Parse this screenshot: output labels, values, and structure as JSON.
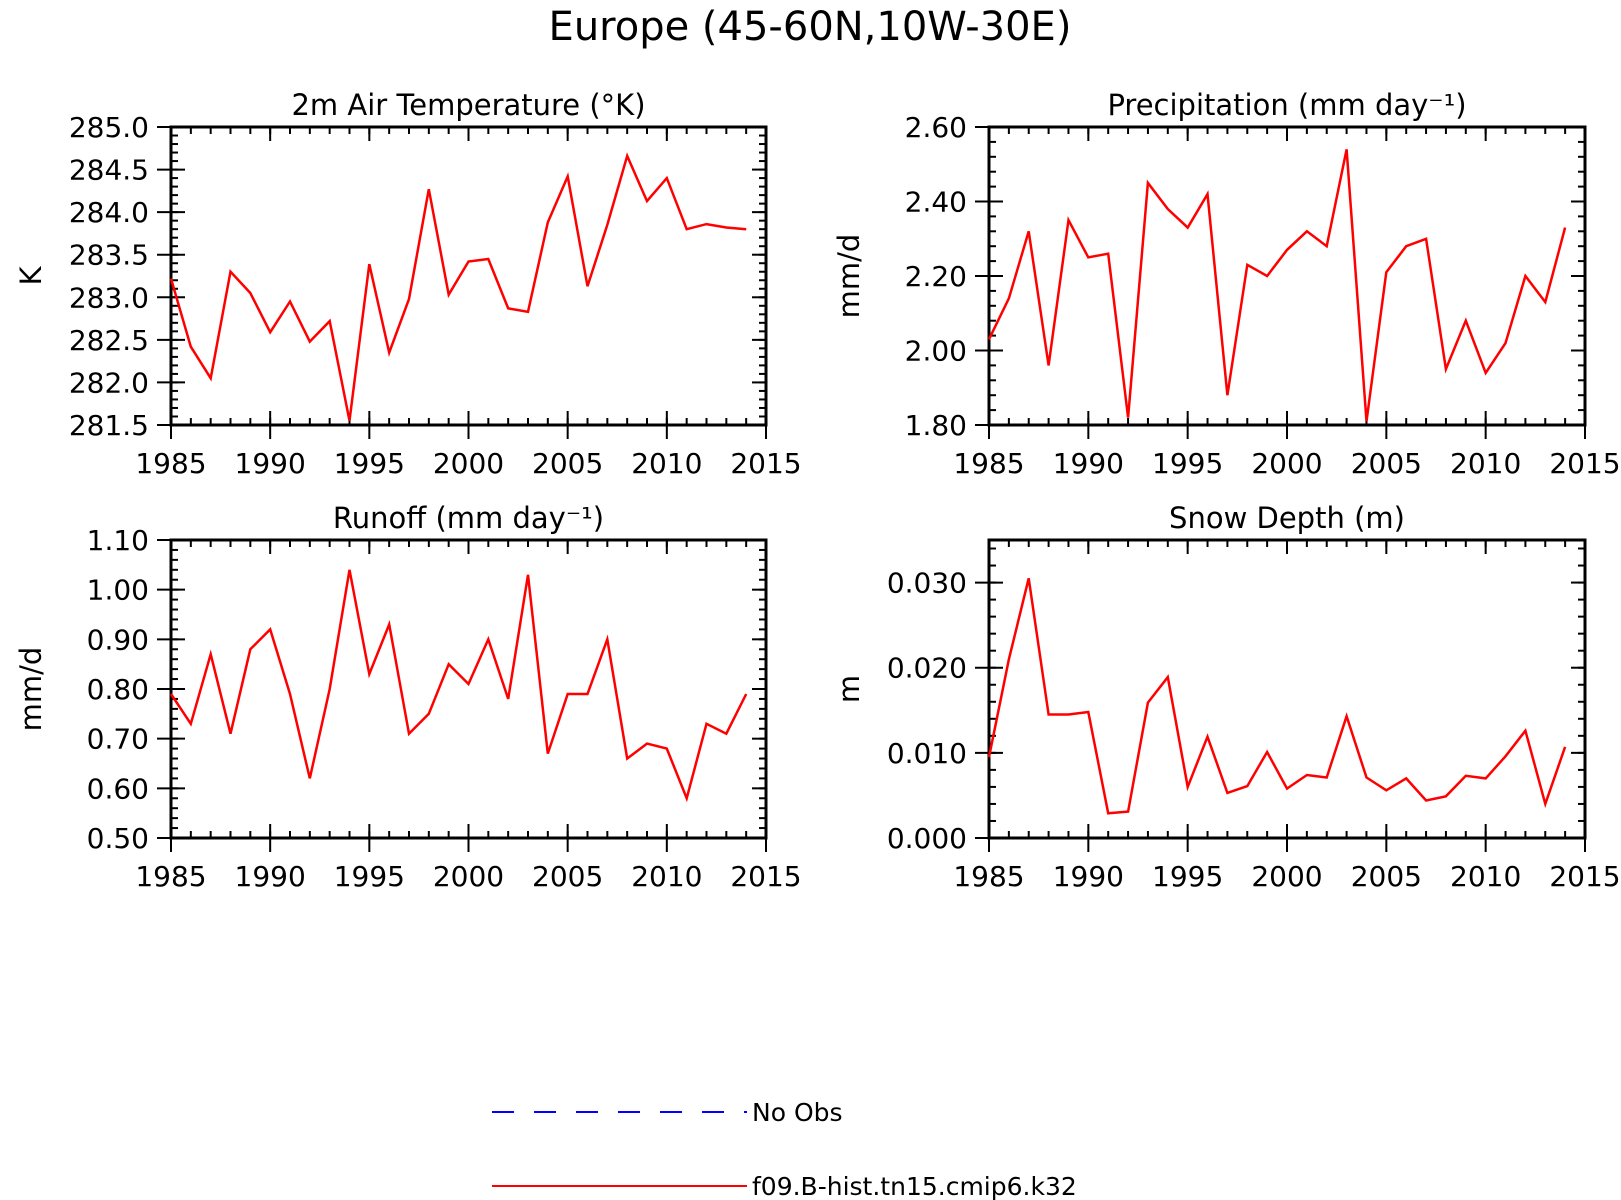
{
  "title": "Europe (45-60N,10W-30E)",
  "legend": [
    {
      "label": "No Obs",
      "color": "#0000ff",
      "style": "dashed"
    },
    {
      "label": "f09.B-hist.tn15.cmip6.k32",
      "color": "#ff0000",
      "style": "solid"
    }
  ],
  "chart_data": [
    {
      "type": "line",
      "title": "2m Air Temperature (°K)",
      "ylabel": "K",
      "xlim": [
        1985,
        2015
      ],
      "ylim": [
        281.5,
        285.0
      ],
      "xticks": [
        1985,
        1990,
        1995,
        2000,
        2005,
        2010,
        2015
      ],
      "yticks": [
        "281.5",
        "282.0",
        "282.5",
        "283.0",
        "283.5",
        "284.0",
        "284.5",
        "285.0"
      ],
      "x": [
        1985,
        1986,
        1987,
        1988,
        1989,
        1990,
        1991,
        1992,
        1993,
        1994,
        1995,
        1996,
        1997,
        1998,
        1999,
        2000,
        2001,
        2002,
        2003,
        2004,
        2005,
        2006,
        2007,
        2008,
        2009,
        2010,
        2011,
        2012,
        2013,
        2014
      ],
      "series": [
        {
          "name": "f09.B-hist.tn15.cmip6.k32",
          "color": "#ff0000",
          "values": [
            283.22,
            282.42,
            282.05,
            283.3,
            283.05,
            282.59,
            282.95,
            282.48,
            282.72,
            281.55,
            283.39,
            282.35,
            282.98,
            284.27,
            283.03,
            283.42,
            283.45,
            282.87,
            282.83,
            283.88,
            284.42,
            283.13,
            283.85,
            284.66,
            284.13,
            284.4,
            283.8,
            283.86,
            283.82,
            283.8
          ]
        }
      ]
    },
    {
      "type": "line",
      "title": "Precipitation (mm day⁻¹)",
      "ylabel": "mm/d",
      "xlim": [
        1985,
        2015
      ],
      "ylim": [
        1.8,
        2.6
      ],
      "xticks": [
        1985,
        1990,
        1995,
        2000,
        2005,
        2010,
        2015
      ],
      "yticks": [
        "1.80",
        "2.00",
        "2.20",
        "2.40",
        "2.60"
      ],
      "x": [
        1985,
        1986,
        1987,
        1988,
        1989,
        1990,
        1991,
        1992,
        1993,
        1994,
        1995,
        1996,
        1997,
        1998,
        1999,
        2000,
        2001,
        2002,
        2003,
        2004,
        2005,
        2006,
        2007,
        2008,
        2009,
        2010,
        2011,
        2012,
        2013,
        2014
      ],
      "series": [
        {
          "name": "f09.B-hist.tn15.cmip6.k32",
          "color": "#ff0000",
          "values": [
            2.03,
            2.14,
            2.32,
            1.96,
            2.35,
            2.25,
            2.26,
            1.82,
            2.45,
            2.38,
            2.33,
            2.42,
            1.88,
            2.23,
            2.2,
            2.27,
            2.32,
            2.28,
            2.54,
            1.81,
            2.21,
            2.28,
            2.3,
            1.95,
            2.08,
            1.94,
            2.02,
            2.2,
            2.13,
            2.33
          ]
        }
      ]
    },
    {
      "type": "line",
      "title": "Runoff (mm day⁻¹)",
      "ylabel": "mm/d",
      "xlim": [
        1985,
        2015
      ],
      "ylim": [
        0.5,
        1.1
      ],
      "xticks": [
        1985,
        1990,
        1995,
        2000,
        2005,
        2010,
        2015
      ],
      "yticks": [
        "0.50",
        "0.60",
        "0.70",
        "0.80",
        "0.90",
        "1.00",
        "1.10"
      ],
      "x": [
        1985,
        1986,
        1987,
        1988,
        1989,
        1990,
        1991,
        1992,
        1993,
        1994,
        1995,
        1996,
        1997,
        1998,
        1999,
        2000,
        2001,
        2002,
        2003,
        2004,
        2005,
        2006,
        2007,
        2008,
        2009,
        2010,
        2011,
        2012,
        2013,
        2014
      ],
      "series": [
        {
          "name": "f09.B-hist.tn15.cmip6.k32",
          "color": "#ff0000",
          "values": [
            0.79,
            0.73,
            0.87,
            0.71,
            0.88,
            0.92,
            0.79,
            0.62,
            0.8,
            1.04,
            0.83,
            0.93,
            0.71,
            0.75,
            0.85,
            0.81,
            0.9,
            0.78,
            1.03,
            0.67,
            0.79,
            0.79,
            0.9,
            0.66,
            0.69,
            0.68,
            0.58,
            0.73,
            0.71,
            0.79
          ]
        }
      ]
    },
    {
      "type": "line",
      "title": "Snow Depth (m)",
      "ylabel": "m",
      "xlim": [
        1985,
        2015
      ],
      "ylim": [
        0.0,
        0.035
      ],
      "xticks": [
        1985,
        1990,
        1995,
        2000,
        2005,
        2010,
        2015
      ],
      "yticks": [
        "0.000",
        "0.010",
        "0.020",
        "0.030"
      ],
      "ytick_values": [
        0.0,
        0.01,
        0.02,
        0.03
      ],
      "x": [
        1985,
        1986,
        1987,
        1988,
        1989,
        1990,
        1991,
        1992,
        1993,
        1994,
        1995,
        1996,
        1997,
        1998,
        1999,
        2000,
        2001,
        2002,
        2003,
        2004,
        2005,
        2006,
        2007,
        2008,
        2009,
        2010,
        2011,
        2012,
        2013,
        2014
      ],
      "series": [
        {
          "name": "f09.B-hist.tn15.cmip6.k32",
          "color": "#ff0000",
          "values": [
            0.0095,
            0.021,
            0.0305,
            0.0145,
            0.0145,
            0.0148,
            0.0029,
            0.0031,
            0.0159,
            0.0189,
            0.006,
            0.0119,
            0.0053,
            0.0061,
            0.0101,
            0.0058,
            0.0074,
            0.0071,
            0.0143,
            0.0071,
            0.0056,
            0.007,
            0.0044,
            0.0049,
            0.0073,
            0.007,
            0.0096,
            0.0126,
            0.004,
            0.0107
          ]
        }
      ]
    }
  ]
}
